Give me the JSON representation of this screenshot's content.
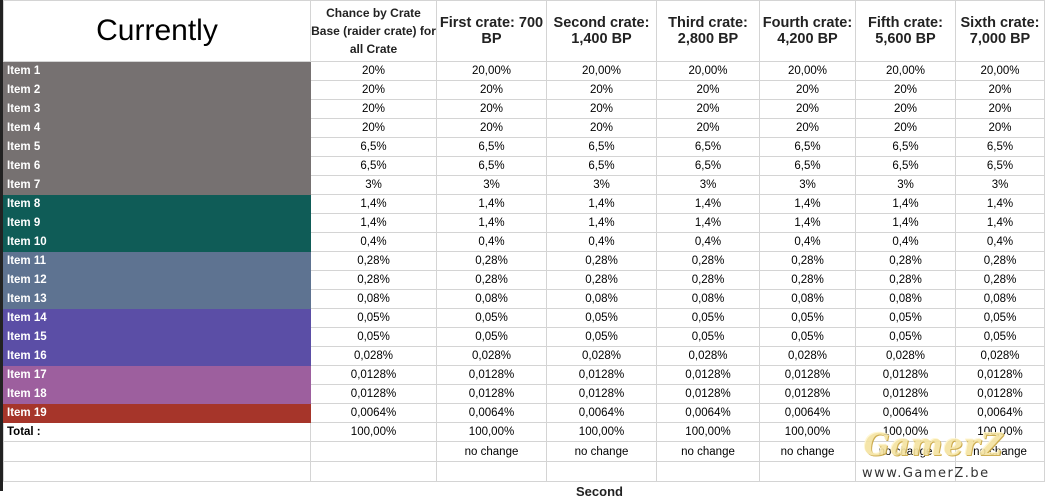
{
  "title": "Currently",
  "headers": [
    "Chance by Crate Base (raider crate) for all Crate",
    "First crate: 700 BP",
    "Second crate: 1,400 BP",
    "Third crate: 2,800 BP",
    "Fourth crate: 4,200 BP",
    "Fifth crate: 5,600 BP",
    "Sixth crate: 7,000 BP"
  ],
  "colors": {
    "gray": "#767171",
    "green": "#0f5c57",
    "slate": "#5e7391",
    "purple": "#5b4ea6",
    "mauve": "#9d5f9e",
    "red": "#a6352a"
  },
  "rows": [
    {
      "label": "Item 1",
      "color": "gray",
      "values": [
        "20%",
        "20,00%",
        "20,00%",
        "20,00%",
        "20,00%",
        "20,00%",
        "20,00%"
      ]
    },
    {
      "label": "Item 2",
      "color": "gray",
      "values": [
        "20%",
        "20%",
        "20%",
        "20%",
        "20%",
        "20%",
        "20%"
      ]
    },
    {
      "label": "Item 3",
      "color": "gray",
      "values": [
        "20%",
        "20%",
        "20%",
        "20%",
        "20%",
        "20%",
        "20%"
      ]
    },
    {
      "label": "Item 4",
      "color": "gray",
      "values": [
        "20%",
        "20%",
        "20%",
        "20%",
        "20%",
        "20%",
        "20%"
      ]
    },
    {
      "label": "Item 5",
      "color": "gray",
      "values": [
        "6,5%",
        "6,5%",
        "6,5%",
        "6,5%",
        "6,5%",
        "6,5%",
        "6,5%"
      ]
    },
    {
      "label": "Item 6",
      "color": "gray",
      "values": [
        "6,5%",
        "6,5%",
        "6,5%",
        "6,5%",
        "6,5%",
        "6,5%",
        "6,5%"
      ]
    },
    {
      "label": "Item 7",
      "color": "gray",
      "values": [
        "3%",
        "3%",
        "3%",
        "3%",
        "3%",
        "3%",
        "3%"
      ]
    },
    {
      "label": "Item 8",
      "color": "green",
      "values": [
        "1,4%",
        "1,4%",
        "1,4%",
        "1,4%",
        "1,4%",
        "1,4%",
        "1,4%"
      ]
    },
    {
      "label": "Item 9",
      "color": "green",
      "values": [
        "1,4%",
        "1,4%",
        "1,4%",
        "1,4%",
        "1,4%",
        "1,4%",
        "1,4%"
      ]
    },
    {
      "label": "Item 10",
      "color": "green",
      "values": [
        "0,4%",
        "0,4%",
        "0,4%",
        "0,4%",
        "0,4%",
        "0,4%",
        "0,4%"
      ]
    },
    {
      "label": "Item 11",
      "color": "slate",
      "values": [
        "0,28%",
        "0,28%",
        "0,28%",
        "0,28%",
        "0,28%",
        "0,28%",
        "0,28%"
      ]
    },
    {
      "label": "Item 12",
      "color": "slate",
      "values": [
        "0,28%",
        "0,28%",
        "0,28%",
        "0,28%",
        "0,28%",
        "0,28%",
        "0,28%"
      ]
    },
    {
      "label": "Item 13",
      "color": "slate",
      "values": [
        "0,08%",
        "0,08%",
        "0,08%",
        "0,08%",
        "0,08%",
        "0,08%",
        "0,08%"
      ]
    },
    {
      "label": "Item 14",
      "color": "purple",
      "values": [
        "0,05%",
        "0,05%",
        "0,05%",
        "0,05%",
        "0,05%",
        "0,05%",
        "0,05%"
      ]
    },
    {
      "label": "Item 15",
      "color": "purple",
      "values": [
        "0,05%",
        "0,05%",
        "0,05%",
        "0,05%",
        "0,05%",
        "0,05%",
        "0,05%"
      ]
    },
    {
      "label": "Item 16",
      "color": "purple",
      "values": [
        "0,028%",
        "0,028%",
        "0,028%",
        "0,028%",
        "0,028%",
        "0,028%",
        "0,028%"
      ]
    },
    {
      "label": "Item 17",
      "color": "mauve",
      "values": [
        "0,0128%",
        "0,0128%",
        "0,0128%",
        "0,0128%",
        "0,0128%",
        "0,0128%",
        "0,0128%"
      ]
    },
    {
      "label": "Item 18",
      "color": "mauve",
      "values": [
        "0,0128%",
        "0,0128%",
        "0,0128%",
        "0,0128%",
        "0,0128%",
        "0,0128%",
        "0,0128%"
      ]
    },
    {
      "label": "Item 19",
      "color": "red",
      "values": [
        "0,0064%",
        "0,0064%",
        "0,0064%",
        "0,0064%",
        "0,0064%",
        "0,0064%",
        "0,0064%"
      ]
    }
  ],
  "total": {
    "label": "Total :",
    "values": [
      "100,00%",
      "100,00%",
      "100,00%",
      "100,00%",
      "100,00%",
      "100,00%",
      "100,00%"
    ]
  },
  "change_note": "no change",
  "cut_text": "Second",
  "watermark": {
    "logo": "GamerZ",
    "url": "www.GamerZ.be"
  }
}
